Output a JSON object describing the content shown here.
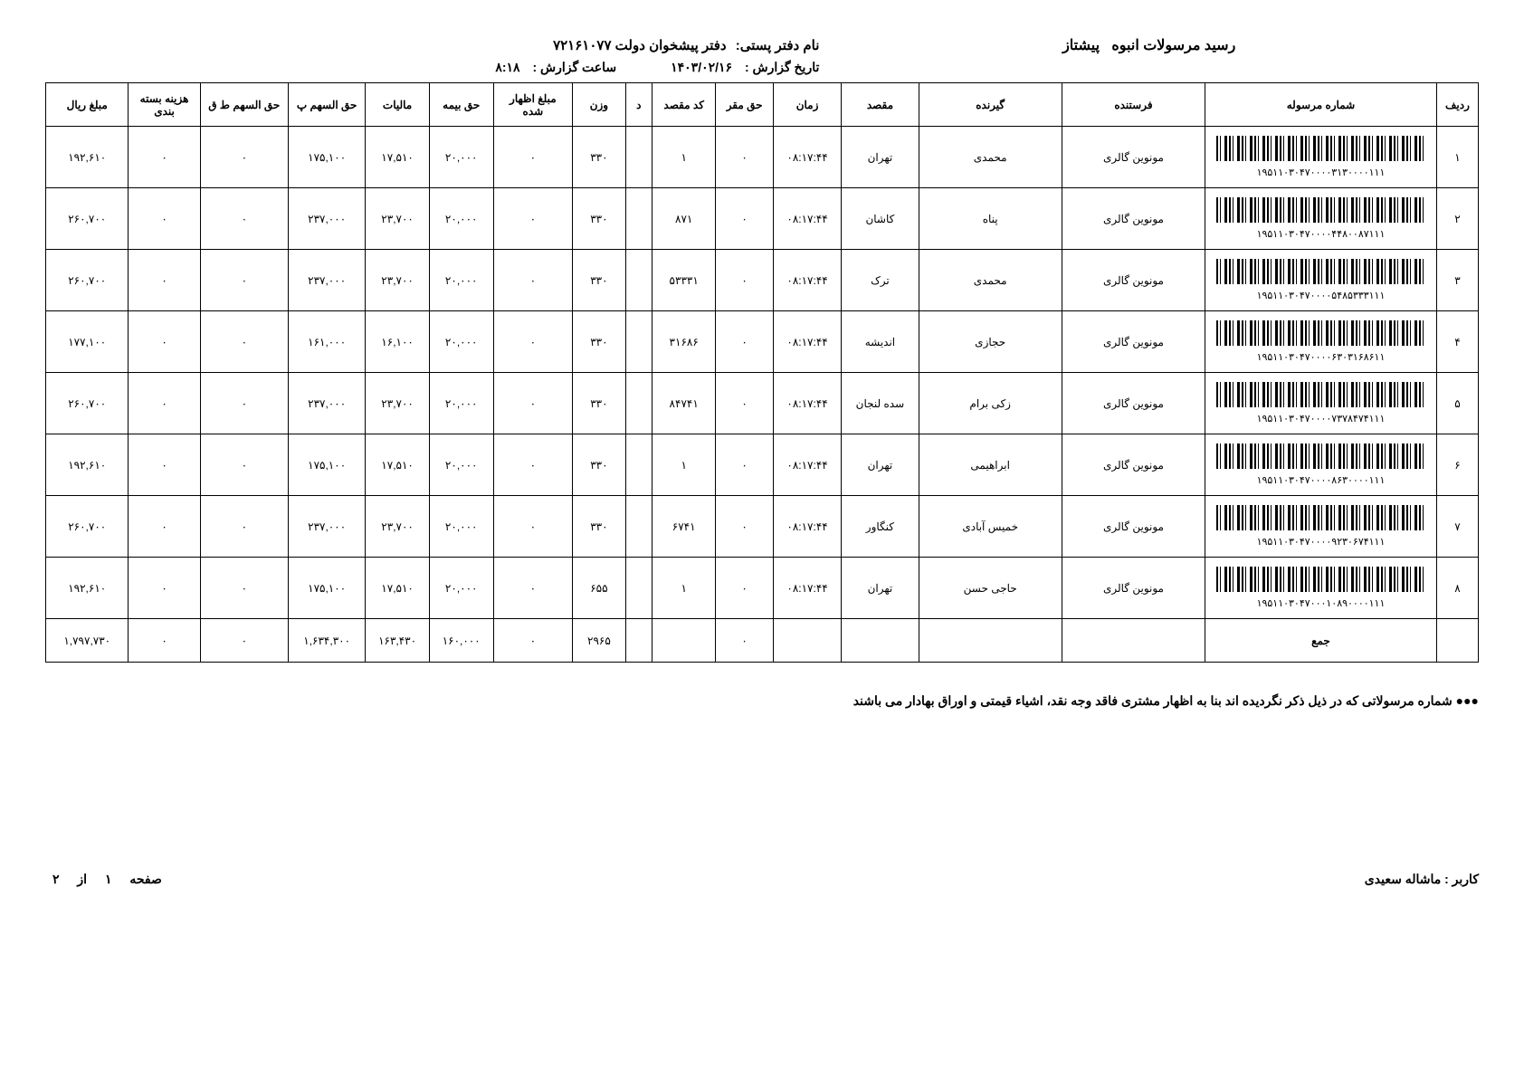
{
  "header": {
    "title_label": "رسید مرسولات انبوه",
    "title_type": "پیشتاز",
    "office_label": "نام دفتر پستی:",
    "office_value": "دفتر پیشخوان دولت ۷۲۱۶۱۰۷۷",
    "report_date_label": "تاریخ گزارش :",
    "report_date_value": "۱۴۰۳/۰۲/۱۶",
    "report_time_label": "ساعت گزارش :",
    "report_time_value": "۸:۱۸"
  },
  "columns": {
    "row": "ردیف",
    "shipment": "شماره مرسوله",
    "sender": "فرستنده",
    "receiver": "گیرنده",
    "dest": "مقصد",
    "time": "زمان",
    "haq_maqar": "حق مقر",
    "dest_code": "کد مقصد",
    "d": "د",
    "weight": "وزن",
    "declared": "مبلغ اظهار شده",
    "insurance": "حق بیمه",
    "tax": "مالیات",
    "share_p": "حق السهم پ",
    "share_tq": "حق السهم ط ق",
    "packaging": "هزینه بسته بندی",
    "amount": "مبلغ ریال"
  },
  "rows": [
    {
      "idx": "۱",
      "track": "۱۹۵۱۱۰۳۰۴۷۰۰۰۰۳۱۳۰۰۰۰۱۱۱",
      "sender": "مونوین گالری",
      "recv": "محمدی",
      "dest": "تهران",
      "time": "۰۸:۱۷:۴۴",
      "haq": "۰",
      "code": "۱",
      "d": "",
      "wt": "۳۳۰",
      "decl": "۰",
      "ins": "۲۰,۰۰۰",
      "tax": "۱۷,۵۱۰",
      "shp": "۱۷۵,۱۰۰",
      "shq": "۰",
      "pack": "۰",
      "amt": "۱۹۲,۶۱۰"
    },
    {
      "idx": "۲",
      "track": "۱۹۵۱۱۰۳۰۴۷۰۰۰۰۴۴۸۰۰۸۷۱۱۱",
      "sender": "مونوین گالری",
      "recv": "پناه",
      "dest": "کاشان",
      "time": "۰۸:۱۷:۴۴",
      "haq": "۰",
      "code": "۸۷۱",
      "d": "",
      "wt": "۳۳۰",
      "decl": "۰",
      "ins": "۲۰,۰۰۰",
      "tax": "۲۳,۷۰۰",
      "shp": "۲۳۷,۰۰۰",
      "shq": "۰",
      "pack": "۰",
      "amt": "۲۶۰,۷۰۰"
    },
    {
      "idx": "۳",
      "track": "۱۹۵۱۱۰۳۰۴۷۰۰۰۰۵۴۸۵۳۳۳۱۱۱",
      "sender": "مونوین گالری",
      "recv": "محمدی",
      "dest": "ترک",
      "time": "۰۸:۱۷:۴۴",
      "haq": "۰",
      "code": "۵۳۳۳۱",
      "d": "",
      "wt": "۳۳۰",
      "decl": "۰",
      "ins": "۲۰,۰۰۰",
      "tax": "۲۳,۷۰۰",
      "shp": "۲۳۷,۰۰۰",
      "shq": "۰",
      "pack": "۰",
      "amt": "۲۶۰,۷۰۰"
    },
    {
      "idx": "۴",
      "track": "۱۹۵۱۱۰۳۰۴۷۰۰۰۰۶۳۰۳۱۶۸۶۱۱",
      "sender": "مونوین گالری",
      "recv": "حجازی",
      "dest": "اندیشه",
      "time": "۰۸:۱۷:۴۴",
      "haq": "۰",
      "code": "۳۱۶۸۶",
      "d": "",
      "wt": "۳۳۰",
      "decl": "۰",
      "ins": "۲۰,۰۰۰",
      "tax": "۱۶,۱۰۰",
      "shp": "۱۶۱,۰۰۰",
      "shq": "۰",
      "pack": "۰",
      "amt": "۱۷۷,۱۰۰"
    },
    {
      "idx": "۵",
      "track": "۱۹۵۱۱۰۳۰۴۷۰۰۰۰۷۳۷۸۴۷۴۱۱۱",
      "sender": "مونوین گالری",
      "recv": "زکی برام",
      "dest": "سده لنجان",
      "time": "۰۸:۱۷:۴۴",
      "haq": "۰",
      "code": "۸۴۷۴۱",
      "d": "",
      "wt": "۳۳۰",
      "decl": "۰",
      "ins": "۲۰,۰۰۰",
      "tax": "۲۳,۷۰۰",
      "shp": "۲۳۷,۰۰۰",
      "shq": "۰",
      "pack": "۰",
      "amt": "۲۶۰,۷۰۰"
    },
    {
      "idx": "۶",
      "track": "۱۹۵۱۱۰۳۰۴۷۰۰۰۰۸۶۳۰۰۰۰۱۱۱",
      "sender": "مونوین گالری",
      "recv": "ابراهیمی",
      "dest": "تهران",
      "time": "۰۸:۱۷:۴۴",
      "haq": "۰",
      "code": "۱",
      "d": "",
      "wt": "۳۳۰",
      "decl": "۰",
      "ins": "۲۰,۰۰۰",
      "tax": "۱۷,۵۱۰",
      "shp": "۱۷۵,۱۰۰",
      "shq": "۰",
      "pack": "۰",
      "amt": "۱۹۲,۶۱۰"
    },
    {
      "idx": "۷",
      "track": "۱۹۵۱۱۰۳۰۴۷۰۰۰۰۹۲۳۰۶۷۴۱۱۱",
      "sender": "مونوین گالری",
      "recv": "خمیس آبادی",
      "dest": "کنگاور",
      "time": "۰۸:۱۷:۴۴",
      "haq": "۰",
      "code": "۶۷۴۱",
      "d": "",
      "wt": "۳۳۰",
      "decl": "۰",
      "ins": "۲۰,۰۰۰",
      "tax": "۲۳,۷۰۰",
      "shp": "۲۳۷,۰۰۰",
      "shq": "۰",
      "pack": "۰",
      "amt": "۲۶۰,۷۰۰"
    },
    {
      "idx": "۸",
      "track": "۱۹۵۱۱۰۳۰۴۷۰۰۰۱۰۸۹۰۰۰۰۱۱۱",
      "sender": "مونوین گالری",
      "recv": "حاجی حسن",
      "dest": "تهران",
      "time": "۰۸:۱۷:۴۴",
      "haq": "۰",
      "code": "۱",
      "d": "",
      "wt": "۶۵۵",
      "decl": "۰",
      "ins": "۲۰,۰۰۰",
      "tax": "۱۷,۵۱۰",
      "shp": "۱۷۵,۱۰۰",
      "shq": "۰",
      "pack": "۰",
      "amt": "۱۹۲,۶۱۰"
    }
  ],
  "totals": {
    "label": "جمع",
    "wt": "۲۹۶۵",
    "decl": "۰",
    "ins": "۱۶۰,۰۰۰",
    "tax": "۱۶۳,۴۳۰",
    "shp": "۱,۶۳۴,۳۰۰",
    "shq": "۰",
    "pack": "۰",
    "haq": "۰",
    "amt": "۱,۷۹۷,۷۳۰"
  },
  "note": "●●● شماره مرسولاتی که در ذیل ذکر نگردیده اند بنا به اظهار مشتری فاقد وجه نقد، اشیاء قیمتی و اوراق بهادار می باشند",
  "footer": {
    "user_label": "کاربر :",
    "user_value": "ماشاله سعیدی",
    "page_label": "صفحه",
    "page_current": "۱",
    "page_of": "از",
    "page_total": "۲"
  }
}
